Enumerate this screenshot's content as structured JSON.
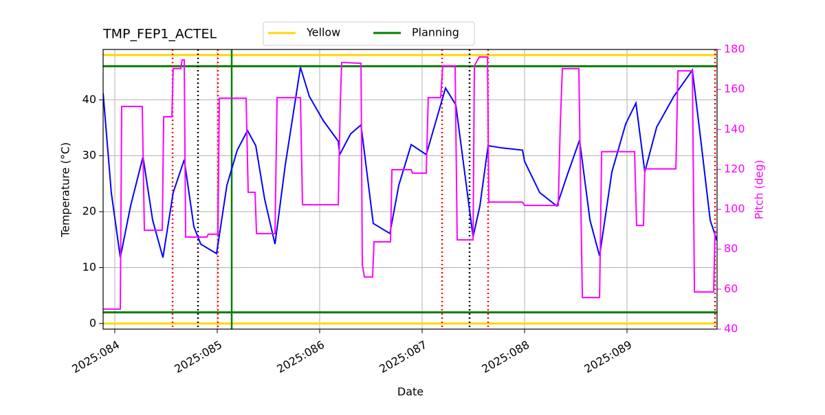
{
  "chart_data": {
    "type": "line",
    "title": "TMP_FEP1_ACTEL",
    "xlabel": "Date",
    "ylabel": "Temperature (°C)",
    "y2label": "Pitch (deg)",
    "xlim": [
      83.886,
      89.879
    ],
    "xticks": [
      {
        "value": 84,
        "label": "2025:084"
      },
      {
        "value": 85,
        "label": "2025:085"
      },
      {
        "value": 86,
        "label": "2025:086"
      },
      {
        "value": 87,
        "label": "2025:087"
      },
      {
        "value": 88,
        "label": "2025:088"
      },
      {
        "value": 89,
        "label": "2025:089"
      }
    ],
    "ylim": [
      -1,
      49
    ],
    "yticks": [
      0,
      10,
      20,
      30,
      40
    ],
    "y2lim": [
      40,
      180
    ],
    "y2ticks": [
      40,
      60,
      80,
      100,
      120,
      140,
      160,
      180
    ],
    "y2color": "#ff00ff",
    "grid": true,
    "legend": "top",
    "series": [
      {
        "color": "#0000ff",
        "x": [
          83.886,
          83.966,
          84.054,
          84.154,
          84.275,
          84.369,
          84.47,
          84.57,
          84.678,
          84.772,
          84.839,
          84.993,
          85.094,
          85.195,
          85.295,
          85.376,
          85.463,
          85.564,
          85.664,
          85.812,
          85.899,
          86.034,
          86.181,
          86.195,
          86.302,
          86.403,
          86.523,
          86.685,
          86.772,
          86.893,
          87.04,
          87.228,
          87.329,
          87.497,
          87.564,
          87.644,
          87.779,
          87.98,
          88.0,
          88.148,
          88.315,
          88.416,
          88.537,
          88.638,
          88.732,
          88.852,
          88.987,
          89.087,
          89.174,
          89.289,
          89.456,
          89.638,
          89.725,
          89.812,
          89.879
        ],
        "values": [
          41.2,
          23.4,
          11.8,
          21.0,
          29.8,
          18.5,
          11.8,
          23.4,
          29.3,
          17.3,
          14.2,
          12.5,
          24.7,
          31.0,
          34.5,
          31.8,
          22.2,
          14.2,
          28.3,
          45.8,
          40.6,
          36.3,
          32.6,
          30.2,
          33.9,
          35.5,
          17.9,
          16.1,
          24.7,
          32.0,
          30.2,
          42.1,
          39.1,
          15.5,
          21.0,
          31.8,
          31.4,
          31.0,
          29.0,
          23.4,
          21.0,
          26.5,
          32.8,
          18.5,
          12.1,
          27.1,
          35.7,
          39.4,
          27.1,
          35.1,
          40.6,
          45.3,
          32.0,
          18.5,
          14.8
        ]
      },
      {
        "color": "#ff00ff",
        "axis": "y2",
        "x": [
          83.886,
          84.054,
          84.067,
          84.268,
          84.289,
          84.463,
          84.477,
          84.557,
          84.57,
          84.644,
          84.658,
          84.678,
          84.691,
          84.899,
          84.913,
          85.007,
          85.02,
          85.282,
          85.302,
          85.369,
          85.383,
          85.564,
          85.584,
          85.812,
          85.832,
          86.181,
          86.201,
          86.215,
          86.403,
          86.416,
          86.436,
          86.517,
          86.53,
          86.691,
          86.705,
          86.893,
          86.906,
          87.04,
          87.06,
          87.181,
          87.201,
          87.322,
          87.342,
          87.497,
          87.51,
          87.557,
          87.638,
          87.651,
          87.98,
          88.0,
          88.329,
          88.349,
          88.369,
          88.53,
          88.55,
          88.564,
          88.732,
          88.752,
          89.074,
          89.094,
          89.161,
          89.174,
          89.477,
          89.497,
          89.638,
          89.658,
          89.846,
          89.859,
          89.879
        ],
        "values": [
          50.0,
          50.0,
          151.5,
          151.5,
          89.5,
          89.5,
          146.3,
          146.3,
          170.4,
          170.4,
          174.8,
          174.8,
          86.1,
          86.1,
          87.5,
          87.5,
          155.6,
          155.6,
          108.5,
          108.5,
          87.8,
          87.8,
          155.9,
          155.9,
          102.3,
          102.3,
          153.2,
          173.5,
          173.1,
          72.3,
          66.1,
          66.1,
          83.7,
          83.7,
          119.8,
          119.8,
          118.1,
          118.1,
          155.9,
          155.9,
          171.8,
          171.8,
          84.7,
          84.7,
          171.8,
          176.2,
          176.2,
          103.6,
          103.6,
          101.9,
          101.9,
          142.9,
          170.4,
          170.4,
          99.9,
          55.8,
          55.8,
          128.8,
          128.8,
          91.9,
          91.9,
          120.2,
          120.2,
          169.3,
          169.3,
          58.6,
          58.6,
          88.5,
          88.5
        ]
      }
    ],
    "hlines": [
      {
        "name": "Yellow",
        "color": "#ffd700",
        "values": [
          0,
          48
        ]
      },
      {
        "name": "Planning",
        "color": "#008000",
        "values": [
          2,
          46
        ]
      }
    ],
    "vlines": [
      {
        "color": "#ff0000",
        "dash": "dotted",
        "x": [
          84.564,
          85.007,
          87.195,
          87.644,
          89.859
        ]
      },
      {
        "color": "#000000",
        "dash": "dotted",
        "x": [
          84.812,
          87.463
        ]
      },
      {
        "color": "#008000",
        "dash": "solid",
        "x": [
          85.141
        ]
      }
    ]
  }
}
